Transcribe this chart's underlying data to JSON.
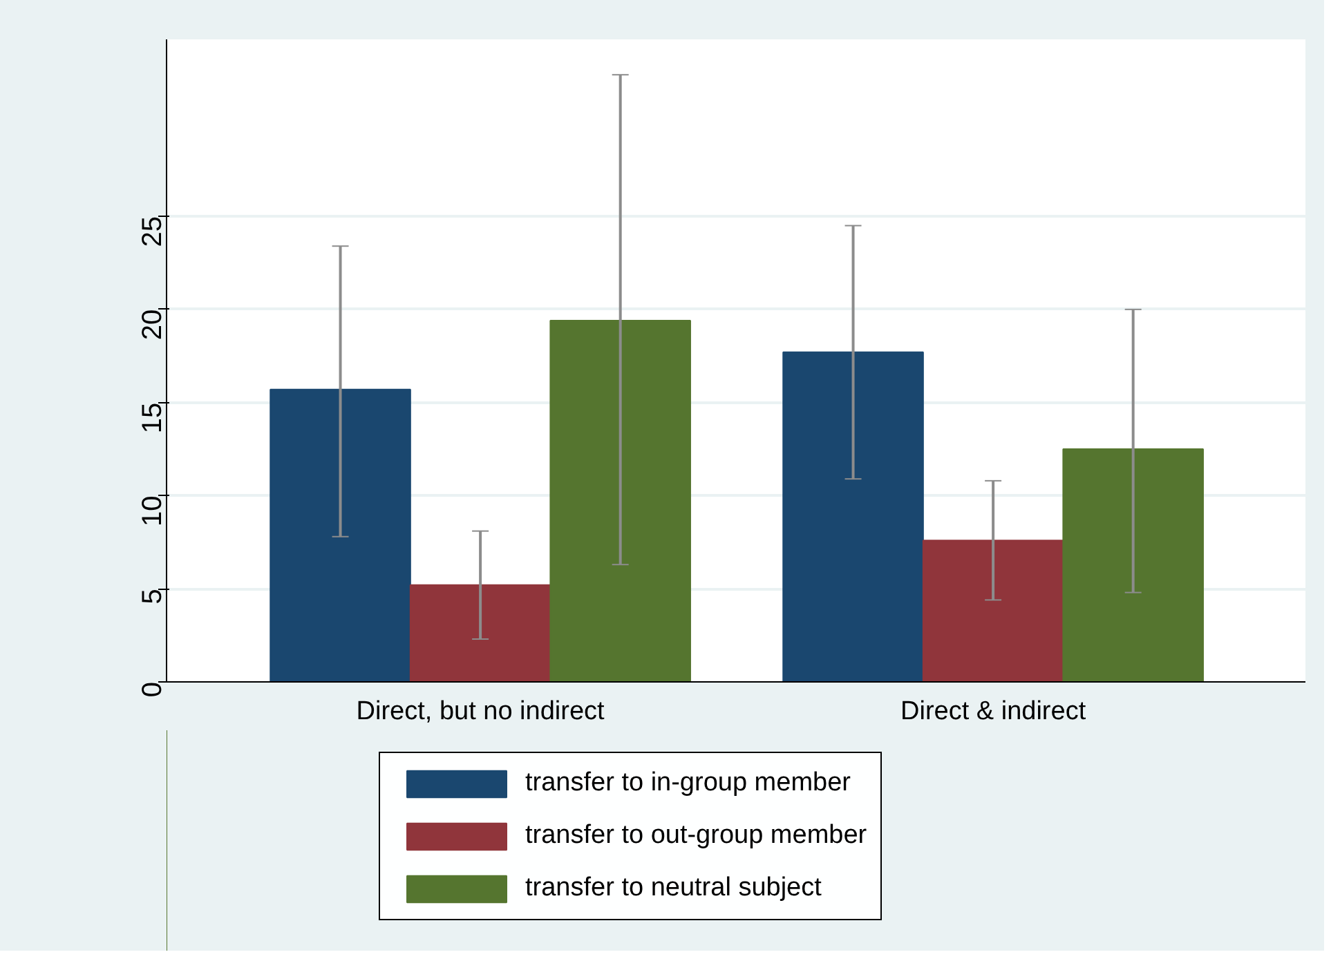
{
  "chart_data": {
    "type": "bar",
    "categories": [
      "Direct, but no indirect",
      "Direct & indirect"
    ],
    "series": [
      {
        "name": "transfer to in-group member",
        "color": "#1a476f",
        "values": [
          15.7,
          17.7
        ],
        "errors": [
          [
            7.8,
            23.4
          ],
          [
            10.9,
            24.5
          ]
        ]
      },
      {
        "name": "transfer to out-group member",
        "color": "#90353b",
        "values": [
          5.2,
          7.6
        ],
        "errors": [
          [
            2.3,
            8.1
          ],
          [
            4.4,
            10.8
          ]
        ]
      },
      {
        "name": "transfer to neutral subject",
        "color": "#55752f",
        "values": [
          19.4,
          12.5
        ],
        "errors": [
          [
            6.3,
            32.6
          ],
          [
            4.8,
            20.0
          ]
        ]
      }
    ],
    "ylim": [
      0,
      34.5
    ],
    "yticks": [
      0,
      5,
      10,
      15,
      20,
      25
    ],
    "grid": "y",
    "legend": "bottom"
  }
}
